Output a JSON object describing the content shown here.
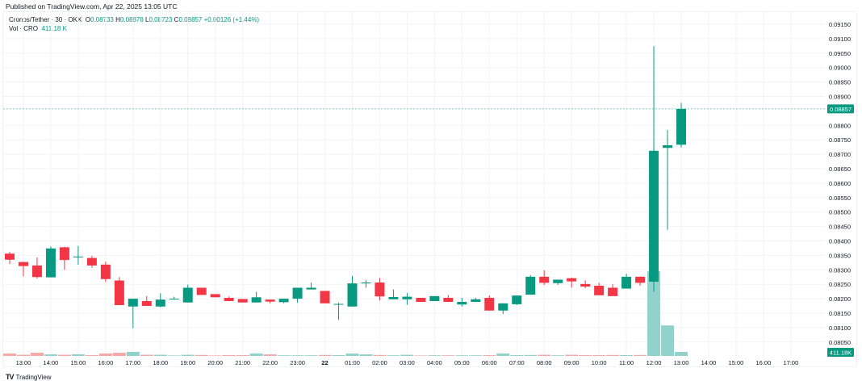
{
  "published": "Published on TradingView.com, Apr 22, 2025 13:05 UTC",
  "legend": {
    "symbol": "Cronos/Tether · 30 · OKX",
    "o_label": "O",
    "o": "0.08733",
    "h_label": "H",
    "h": "0.08878",
    "l_label": "L",
    "l": "0.08723",
    "c_label": "C",
    "c": "0.08857",
    "change": "+0.00126 (+1.44%)",
    "vol_label": "Vol · CRO",
    "vol": "411.18 K"
  },
  "footer": {
    "logo": "TV",
    "brand": "TradingView"
  },
  "colors": {
    "up": "#089981",
    "down": "#F23645",
    "vol_up": "#92d2cc",
    "vol_down": "#f7a9a7",
    "grid": "#f2f3f5"
  },
  "chart_data": {
    "type": "candlestick",
    "interval": "30",
    "ylim": [
      0.0803,
      0.0917
    ],
    "y_ticks": [
      "0.09150",
      "0.09100",
      "0.09050",
      "0.09000",
      "0.08950",
      "0.08900",
      "0.08800",
      "0.08750",
      "0.08700",
      "0.08650",
      "0.08600",
      "0.08550",
      "0.08500",
      "0.08450",
      "0.08400",
      "0.08350",
      "0.08300",
      "0.08250",
      "0.08200",
      "0.08150",
      "0.08100",
      "0.08050"
    ],
    "last_price_label": "0.08857",
    "last_price": 0.08857,
    "last_volume_label": "411.18K",
    "x_ticks": [
      {
        "label": "13:00",
        "index": 1
      },
      {
        "label": "14:00",
        "index": 3
      },
      {
        "label": "15:00",
        "index": 5
      },
      {
        "label": "16:00",
        "index": 7
      },
      {
        "label": "17:00",
        "index": 9
      },
      {
        "label": "18:00",
        "index": 11
      },
      {
        "label": "19:00",
        "index": 13
      },
      {
        "label": "20:00",
        "index": 15
      },
      {
        "label": "21:00",
        "index": 17
      },
      {
        "label": "22:00",
        "index": 19
      },
      {
        "label": "23:00",
        "index": 21
      },
      {
        "label": "22",
        "index": 23,
        "bold": true
      },
      {
        "label": "01:00",
        "index": 25
      },
      {
        "label": "02:00",
        "index": 27
      },
      {
        "label": "03:00",
        "index": 29
      },
      {
        "label": "04:00",
        "index": 31
      },
      {
        "label": "05:00",
        "index": 33
      },
      {
        "label": "06:00",
        "index": 35
      },
      {
        "label": "07:00",
        "index": 37
      },
      {
        "label": "08:00",
        "index": 39
      },
      {
        "label": "09:00",
        "index": 41
      },
      {
        "label": "10:00",
        "index": 43
      },
      {
        "label": "11:00",
        "index": 45
      },
      {
        "label": "12:00",
        "index": 47
      },
      {
        "label": "13:00",
        "index": 49
      },
      {
        "label": "14:00",
        "index": 51
      },
      {
        "label": "15:00",
        "index": 53
      },
      {
        "label": "16:00",
        "index": 55
      },
      {
        "label": "17:00",
        "index": 57
      }
    ],
    "volume_unit": "K",
    "candles": [
      {
        "t": "12:30",
        "o": 0.08356,
        "h": 0.08362,
        "l": 0.0832,
        "c": 0.08335,
        "v": 250
      },
      {
        "t": "13:00",
        "o": 0.08327,
        "h": 0.08328,
        "l": 0.08277,
        "c": 0.08313,
        "v": 120
      },
      {
        "t": "13:30",
        "o": 0.08315,
        "h": 0.08343,
        "l": 0.0827,
        "c": 0.08275,
        "v": 330
      },
      {
        "t": "14:00",
        "o": 0.08274,
        "h": 0.08381,
        "l": 0.08274,
        "c": 0.08374,
        "v": 160
      },
      {
        "t": "14:30",
        "o": 0.08378,
        "h": 0.0838,
        "l": 0.083,
        "c": 0.08334,
        "v": 120
      },
      {
        "t": "15:00",
        "o": 0.08344,
        "h": 0.08383,
        "l": 0.08318,
        "c": 0.08346,
        "v": 165
      },
      {
        "t": "15:30",
        "o": 0.08341,
        "h": 0.08348,
        "l": 0.08307,
        "c": 0.08315,
        "v": 80
      },
      {
        "t": "16:00",
        "o": 0.08318,
        "h": 0.08328,
        "l": 0.08258,
        "c": 0.08268,
        "v": 250
      },
      {
        "t": "16:30",
        "o": 0.08263,
        "h": 0.08275,
        "l": 0.08178,
        "c": 0.08178,
        "v": 330
      },
      {
        "t": "17:00",
        "o": 0.08173,
        "h": 0.082,
        "l": 0.08098,
        "c": 0.082,
        "v": 410
      },
      {
        "t": "17:30",
        "o": 0.08192,
        "h": 0.08209,
        "l": 0.08175,
        "c": 0.08175,
        "v": 120
      },
      {
        "t": "18:00",
        "o": 0.08173,
        "h": 0.08219,
        "l": 0.0817,
        "c": 0.08197,
        "v": 120
      },
      {
        "t": "18:30",
        "o": 0.08197,
        "h": 0.08207,
        "l": 0.08197,
        "c": 0.082,
        "v": 40
      },
      {
        "t": "19:00",
        "o": 0.08187,
        "h": 0.08249,
        "l": 0.08187,
        "c": 0.08238,
        "v": 120
      },
      {
        "t": "19:30",
        "o": 0.08238,
        "h": 0.08238,
        "l": 0.08213,
        "c": 0.08213,
        "v": 100
      },
      {
        "t": "20:00",
        "o": 0.08216,
        "h": 0.08216,
        "l": 0.08205,
        "c": 0.08205,
        "v": 40
      },
      {
        "t": "20:30",
        "o": 0.08203,
        "h": 0.08208,
        "l": 0.08192,
        "c": 0.08192,
        "v": 80
      },
      {
        "t": "21:00",
        "o": 0.08199,
        "h": 0.08199,
        "l": 0.08187,
        "c": 0.08187,
        "v": 80
      },
      {
        "t": "21:30",
        "o": 0.08187,
        "h": 0.08224,
        "l": 0.08187,
        "c": 0.08205,
        "v": 250
      },
      {
        "t": "22:00",
        "o": 0.08197,
        "h": 0.08197,
        "l": 0.08184,
        "c": 0.0819,
        "v": 160
      },
      {
        "t": "22:30",
        "o": 0.08188,
        "h": 0.082,
        "l": 0.08184,
        "c": 0.082,
        "v": 65
      },
      {
        "t": "23:00",
        "o": 0.082,
        "h": 0.08238,
        "l": 0.08186,
        "c": 0.08238,
        "v": 65
      },
      {
        "t": "23:30",
        "o": 0.08232,
        "h": 0.08256,
        "l": 0.08232,
        "c": 0.08238,
        "v": 65
      },
      {
        "t": "00:00",
        "o": 0.08227,
        "h": 0.08227,
        "l": 0.08184,
        "c": 0.08184,
        "v": 100
      },
      {
        "t": "00:30",
        "o": 0.0818,
        "h": 0.08186,
        "l": 0.08126,
        "c": 0.08182,
        "v": 80
      },
      {
        "t": "01:00",
        "o": 0.08173,
        "h": 0.08279,
        "l": 0.08173,
        "c": 0.08253,
        "v": 250
      },
      {
        "t": "01:30",
        "o": 0.08253,
        "h": 0.08264,
        "l": 0.08238,
        "c": 0.08256,
        "v": 160
      },
      {
        "t": "02:00",
        "o": 0.08256,
        "h": 0.08272,
        "l": 0.08194,
        "c": 0.08208,
        "v": 100
      },
      {
        "t": "02:30",
        "o": 0.08198,
        "h": 0.08232,
        "l": 0.08198,
        "c": 0.08206,
        "v": 65
      },
      {
        "t": "03:00",
        "o": 0.08198,
        "h": 0.0822,
        "l": 0.08179,
        "c": 0.08207,
        "v": 120
      },
      {
        "t": "03:30",
        "o": 0.08203,
        "h": 0.08203,
        "l": 0.08189,
        "c": 0.08189,
        "v": 40
      },
      {
        "t": "04:00",
        "o": 0.08192,
        "h": 0.08209,
        "l": 0.08192,
        "c": 0.08209,
        "v": 65
      },
      {
        "t": "04:30",
        "o": 0.08203,
        "h": 0.08213,
        "l": 0.08189,
        "c": 0.08189,
        "v": 65
      },
      {
        "t": "05:00",
        "o": 0.0818,
        "h": 0.08203,
        "l": 0.08173,
        "c": 0.08189,
        "v": 65
      },
      {
        "t": "05:30",
        "o": 0.08189,
        "h": 0.08203,
        "l": 0.08189,
        "c": 0.08198,
        "v": 65
      },
      {
        "t": "06:00",
        "o": 0.08203,
        "h": 0.08211,
        "l": 0.08159,
        "c": 0.08159,
        "v": 80
      },
      {
        "t": "06:30",
        "o": 0.08159,
        "h": 0.08184,
        "l": 0.08147,
        "c": 0.08184,
        "v": 250
      },
      {
        "t": "07:00",
        "o": 0.08181,
        "h": 0.08211,
        "l": 0.08178,
        "c": 0.08211,
        "v": 80
      },
      {
        "t": "07:30",
        "o": 0.08214,
        "h": 0.08281,
        "l": 0.08214,
        "c": 0.08276,
        "v": 100
      },
      {
        "t": "08:00",
        "o": 0.08276,
        "h": 0.08298,
        "l": 0.08248,
        "c": 0.08255,
        "v": 120
      },
      {
        "t": "08:30",
        "o": 0.08254,
        "h": 0.08266,
        "l": 0.08248,
        "c": 0.08266,
        "v": 65
      },
      {
        "t": "09:00",
        "o": 0.08271,
        "h": 0.08273,
        "l": 0.08238,
        "c": 0.0826,
        "v": 120
      },
      {
        "t": "09:30",
        "o": 0.08251,
        "h": 0.08264,
        "l": 0.08236,
        "c": 0.08242,
        "v": 80
      },
      {
        "t": "10:00",
        "o": 0.08245,
        "h": 0.08255,
        "l": 0.08212,
        "c": 0.08212,
        "v": 80
      },
      {
        "t": "10:30",
        "o": 0.08238,
        "h": 0.0825,
        "l": 0.08209,
        "c": 0.08209,
        "v": 100
      },
      {
        "t": "11:00",
        "o": 0.08235,
        "h": 0.08286,
        "l": 0.08235,
        "c": 0.08276,
        "v": 80
      },
      {
        "t": "11:30",
        "o": 0.08276,
        "h": 0.08276,
        "l": 0.08245,
        "c": 0.08255,
        "v": 100
      },
      {
        "t": "12:00",
        "o": 0.08259,
        "h": 0.09074,
        "l": 0.08224,
        "c": 0.08712,
        "v": 8600
      },
      {
        "t": "12:30",
        "o": 0.08722,
        "h": 0.08784,
        "l": 0.08438,
        "c": 0.08731,
        "v": 3100
      },
      {
        "t": "13:00",
        "o": 0.08733,
        "h": 0.08878,
        "l": 0.08723,
        "c": 0.08857,
        "v": 411.18
      }
    ]
  }
}
